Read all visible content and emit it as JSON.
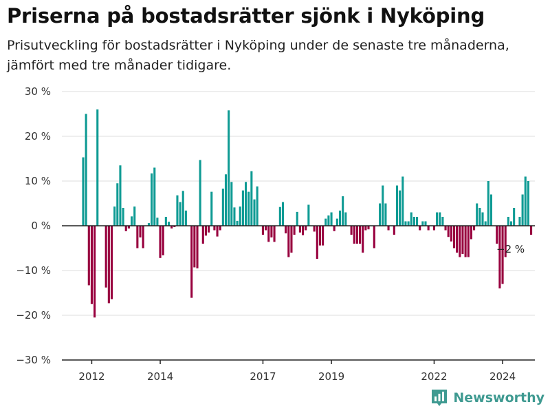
{
  "header": {
    "title": "Priserna på bostadsrätter sjönk i Nyköping",
    "subtitle": "Prisutveckling för bostadsrätter i Nyköping under de senaste tre månaderna, jämfört med tre månader tidigare."
  },
  "brand": {
    "name": "Newsworthy",
    "icon": "newsworthy-chart-icon"
  },
  "colors": {
    "positive": "#0f9b94",
    "negative": "#98003e",
    "brand": "#3f9a91"
  },
  "chart_data": {
    "type": "bar",
    "title": "Priserna på bostadsrätter sjönk i Nyköping",
    "subtitle": "Prisutveckling för bostadsrätter i Nyköping under de senaste tre månaderna, jämfört med tre månader tidigare.",
    "ylim": [
      -30,
      30
    ],
    "y_ticks": [
      30,
      20,
      10,
      0,
      -10,
      -20,
      -30
    ],
    "y_tick_labels": [
      "30 %",
      "20 %",
      "10 %",
      "0 %",
      "−10 %",
      "−20 %",
      "−30 %"
    ],
    "x_tick_labels": [
      {
        "label": "2012",
        "index": 3
      },
      {
        "label": "2014",
        "index": 27
      },
      {
        "label": "2017",
        "index": 63
      },
      {
        "label": "2019",
        "index": 87
      },
      {
        "label": "2022",
        "index": 123
      },
      {
        "label": "2024",
        "index": 147
      }
    ],
    "grid": true,
    "annotation": {
      "text": "−2 %",
      "index": 159
    },
    "values": [
      15.3,
      25,
      -13.3,
      -17.5,
      -20.5,
      26,
      0,
      0,
      -13.8,
      -17.3,
      -16.4,
      4.3,
      9.5,
      13.5,
      4,
      -1.2,
      -0.6,
      2.1,
      4.3,
      -5,
      -2.6,
      -5,
      0,
      0.6,
      11.7,
      13,
      1.8,
      -7.2,
      -6.6,
      2,
      0.9,
      -0.6,
      -0.3,
      6.8,
      5.3,
      7.8,
      3.4,
      0,
      -16.1,
      -9.3,
      -9.5,
      14.7,
      -4,
      -2.2,
      -1.5,
      7.6,
      -1,
      -2.4,
      -1,
      8.3,
      11.5,
      25.8,
      9.8,
      4.1,
      1.1,
      4.3,
      7.9,
      9.8,
      7.6,
      12.2,
      5.9,
      8.8,
      0,
      -2,
      -1,
      -3.6,
      -2.6,
      -3.6,
      0,
      4.2,
      5.3,
      -1.7,
      -7,
      -6,
      -2,
      3.1,
      -1.5,
      -2.1,
      -1,
      4.7,
      0,
      -1.3,
      -7.4,
      -4.4,
      -4.4,
      1.6,
      2.3,
      3,
      -1.2,
      1.6,
      3.4,
      6.6,
      3,
      0,
      -2,
      -4,
      -4,
      -4,
      -6,
      -1,
      -0.8,
      0,
      -5,
      0,
      5,
      9,
      5,
      -1,
      0,
      -2,
      9,
      7.9,
      11,
      1,
      1,
      3,
      2,
      2,
      -1,
      1,
      1,
      -1,
      0,
      -1,
      3,
      3,
      2,
      -1,
      -2.5,
      -3.5,
      -5,
      -6,
      -7,
      -6.3,
      -7,
      -7,
      -3,
      -1,
      5,
      4,
      3,
      1,
      10,
      7,
      0,
      -4,
      -14,
      -13,
      -7,
      2,
      1,
      4,
      0,
      2,
      7,
      11,
      10,
      -2
    ]
  }
}
